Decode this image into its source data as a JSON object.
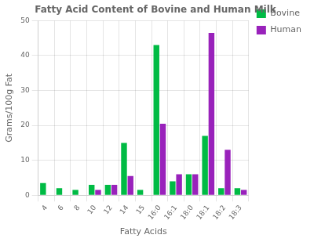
{
  "chart_data": {
    "type": "bar",
    "title": "Fatty Acid Content of Bovine and Human Milk",
    "xlabel": "Fatty Acids",
    "ylabel": "Grams/100g Fat",
    "categories": [
      "4",
      "6",
      "8",
      "10",
      "12",
      "14",
      "15",
      "16:0",
      "16:1",
      "18:0",
      "18:1",
      "18:2",
      "18:3"
    ],
    "series": [
      {
        "name": "Bovine",
        "color": "#00bb44",
        "values": [
          3.5,
          2.0,
          1.5,
          3.0,
          3.0,
          15.0,
          1.5,
          43.0,
          4.0,
          6.0,
          17.0,
          2.0,
          2.0
        ]
      },
      {
        "name": "Human",
        "color": "#9922bb",
        "values": [
          0,
          0,
          0,
          1.5,
          3.0,
          5.5,
          0,
          20.5,
          6.0,
          6.0,
          46.5,
          13.0,
          1.5
        ]
      }
    ],
    "ylim": [
      0,
      50
    ],
    "yticks": [
      0,
      10,
      20,
      30,
      40,
      50
    ],
    "grid": true,
    "legend": "right"
  }
}
